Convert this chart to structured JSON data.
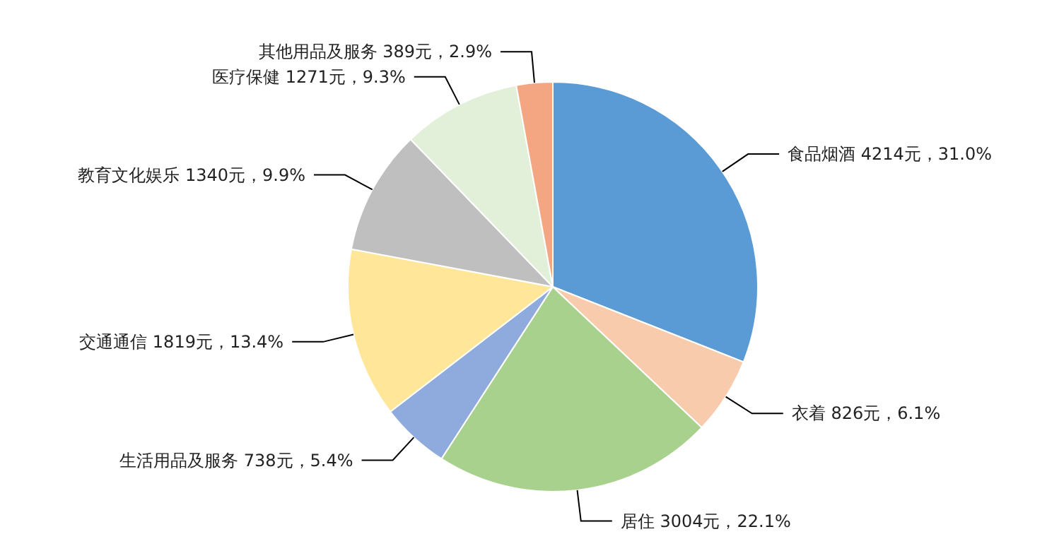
{
  "chart_data": {
    "type": "pie",
    "categories": [
      "食品烟酒",
      "衣着",
      "居住",
      "生活用品及服务",
      "交通通信",
      "教育文化娱乐",
      "医疗保健",
      "其他用品及服务"
    ],
    "values": [
      4214,
      826,
      3004,
      738,
      1819,
      1340,
      1271,
      389
    ],
    "value_labels": [
      "4214元，31.0%",
      "826元，6.1%",
      "3004元，22.1%",
      "738元，5.4%",
      "1819元，13.4%",
      "1340元，9.9%",
      "1271元，9.3%",
      "389元，2.9%"
    ],
    "colors": [
      "#5b9bd5",
      "#f8cbad",
      "#a9d18e",
      "#8faadc",
      "#ffe699",
      "#bfbfbf",
      "#e2f0d9",
      "#f4a582"
    ],
    "legend": false
  }
}
